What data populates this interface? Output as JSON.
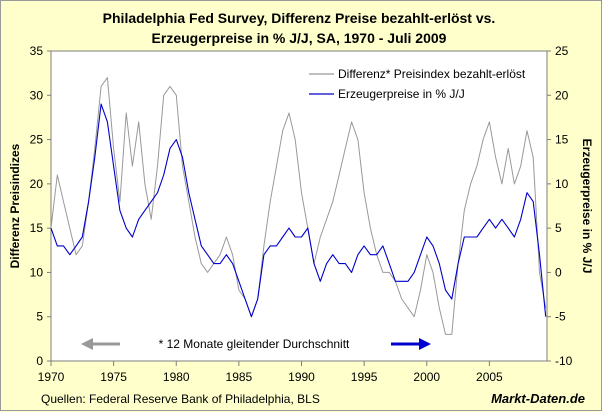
{
  "chart_data": {
    "type": "line",
    "title_line1": "Philadelphia Fed Survey, Differenz Preise bezahlt-erlöst vs.",
    "title_line2": "Erzeugerpreise in % J/J, SA, 1970 - Juli 2009",
    "ylabel_left": "Differenz Preisindizes",
    "ylabel_right": "Erzeugerpreise in % J/J",
    "ylim_left": [
      0,
      35
    ],
    "ylim_right": [
      -10,
      25
    ],
    "xlim": [
      1970,
      2009.6
    ],
    "x_ticks": [
      1970,
      1975,
      1980,
      1985,
      1990,
      1995,
      2000,
      2005
    ],
    "y_left_ticks": [
      0,
      5,
      10,
      15,
      20,
      25,
      30,
      35
    ],
    "y_right_ticks": [
      -10,
      -5,
      0,
      5,
      10,
      15,
      20,
      25
    ],
    "legend_position": "top-right",
    "series": [
      {
        "name": "Differenz* Preisindex bezahlt-erlöst",
        "axis": "left",
        "color": "#999999",
        "x": [
          1970.0,
          1970.5,
          1971.0,
          1971.5,
          1972.0,
          1972.5,
          1973.0,
          1973.5,
          1974.0,
          1974.5,
          1975.0,
          1975.5,
          1976.0,
          1976.5,
          1977.0,
          1977.5,
          1978.0,
          1978.5,
          1979.0,
          1979.5,
          1980.0,
          1980.5,
          1981.0,
          1981.5,
          1982.0,
          1982.5,
          1983.0,
          1983.5,
          1984.0,
          1984.5,
          1985.0,
          1985.5,
          1986.0,
          1986.5,
          1987.0,
          1987.5,
          1988.0,
          1988.5,
          1989.0,
          1989.5,
          1990.0,
          1990.5,
          1991.0,
          1991.5,
          1992.0,
          1992.5,
          1993.0,
          1993.5,
          1994.0,
          1994.5,
          1995.0,
          1995.5,
          1996.0,
          1996.5,
          1997.0,
          1997.5,
          1998.0,
          1998.5,
          1999.0,
          1999.5,
          2000.0,
          2000.5,
          2001.0,
          2001.5,
          2002.0,
          2002.5,
          2003.0,
          2003.5,
          2004.0,
          2004.5,
          2005.0,
          2005.5,
          2006.0,
          2006.5,
          2007.0,
          2007.5,
          2008.0,
          2008.5,
          2009.0,
          2009.5
        ],
        "values": [
          15,
          21,
          18,
          15,
          12,
          13,
          18,
          24,
          31,
          32,
          24,
          18,
          28,
          22,
          27,
          20,
          16,
          22,
          30,
          31,
          30,
          22,
          18,
          14,
          11,
          10,
          11,
          12,
          14,
          12,
          8,
          7,
          5,
          7,
          13,
          18,
          22,
          26,
          28,
          25,
          19,
          15,
          11,
          14,
          16,
          18,
          21,
          24,
          27,
          25,
          19,
          15,
          12,
          10,
          10,
          9,
          7,
          6,
          5,
          8,
          12,
          10,
          6,
          3,
          3,
          11,
          17,
          20,
          22,
          25,
          27,
          23,
          20,
          24,
          20,
          22,
          26,
          23,
          10,
          6
        ]
      },
      {
        "name": "Erzeugerpreise in % J/J",
        "axis": "right",
        "color": "#0000cc",
        "x": [
          1970.0,
          1970.5,
          1971.0,
          1971.5,
          1972.0,
          1972.5,
          1973.0,
          1973.5,
          1974.0,
          1974.5,
          1975.0,
          1975.5,
          1976.0,
          1976.5,
          1977.0,
          1977.5,
          1978.0,
          1978.5,
          1979.0,
          1979.5,
          1980.0,
          1980.5,
          1981.0,
          1981.5,
          1982.0,
          1982.5,
          1983.0,
          1983.5,
          1984.0,
          1984.5,
          1985.0,
          1985.5,
          1986.0,
          1986.5,
          1987.0,
          1987.5,
          1988.0,
          1988.5,
          1989.0,
          1989.5,
          1990.0,
          1990.5,
          1991.0,
          1991.5,
          1992.0,
          1992.5,
          1993.0,
          1993.5,
          1994.0,
          1994.5,
          1995.0,
          1995.5,
          1996.0,
          1996.5,
          1997.0,
          1997.5,
          1998.0,
          1998.5,
          1999.0,
          1999.5,
          2000.0,
          2000.5,
          2001.0,
          2001.5,
          2002.0,
          2002.5,
          2003.0,
          2003.5,
          2004.0,
          2004.5,
          2005.0,
          2005.5,
          2006.0,
          2006.5,
          2007.0,
          2007.5,
          2008.0,
          2008.5,
          2009.0,
          2009.5
        ],
        "values": [
          5,
          3,
          3,
          2,
          3,
          4,
          8,
          13,
          19,
          17,
          12,
          7,
          5,
          4,
          6,
          7,
          8,
          9,
          11,
          14,
          15,
          13,
          9,
          6,
          3,
          2,
          1,
          1,
          2,
          1,
          -1,
          -3,
          -5,
          -3,
          2,
          3,
          3,
          4,
          5,
          4,
          4,
          5,
          1,
          -1,
          1,
          2,
          1,
          1,
          0,
          2,
          3,
          2,
          2,
          3,
          1,
          -1,
          -1,
          -1,
          0,
          2,
          4,
          3,
          1,
          -2,
          -3,
          1,
          4,
          4,
          4,
          5,
          6,
          5,
          6,
          5,
          4,
          6,
          9,
          8,
          2,
          -5
        ]
      }
    ],
    "annotation_note": "* 12 Monate gleitender Durchschnitt",
    "source": "Quellen: Federal Reserve Bank of Philadelphia, BLS",
    "brand": "Markt-Daten.de",
    "colors": {
      "background": "#ffffcc",
      "plot_background": "#ffffff",
      "series1": "#999999",
      "series2": "#0000cc"
    }
  }
}
